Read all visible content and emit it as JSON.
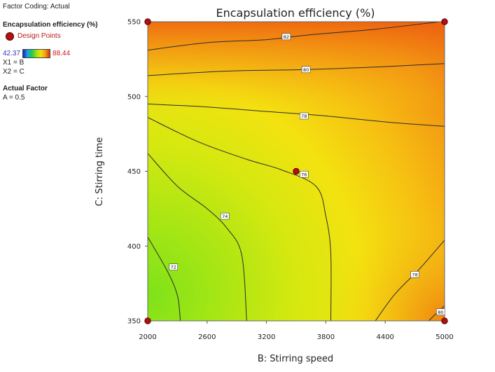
{
  "legend": {
    "factor_coding": "Factor Coding: Actual",
    "response_title": "Encapsulation efficiency (%)",
    "design_points_label": "Design Points",
    "color_min": "42.37",
    "color_max": "88.44",
    "x1": "X1 = B",
    "x2": "X2 = C",
    "actual_factor_title": "Actual Factor",
    "actual_factor_value": "A = 0.5"
  },
  "chart_data": {
    "type": "contour",
    "title": "Encapsulation efficiency (%)",
    "xlabel": "B: Stirring speed",
    "ylabel": "C: Stirring time",
    "xlim": [
      2000,
      5000
    ],
    "ylim": [
      350,
      550
    ],
    "xticks": [
      2000,
      2600,
      3200,
      3800,
      4400,
      5000
    ],
    "yticks": [
      350,
      400,
      450,
      500,
      550
    ],
    "contour_levels": [
      {
        "label": "72",
        "points": [
          [
            2000,
            406
          ],
          [
            2200,
            383
          ],
          [
            2300,
            367
          ],
          [
            2330,
            350
          ]
        ],
        "label_at": [
          2260,
          386
        ]
      },
      {
        "label": "74",
        "points": [
          [
            2000,
            462
          ],
          [
            2300,
            440
          ],
          [
            2600,
            425
          ],
          [
            2800,
            412
          ],
          [
            2950,
            394
          ],
          [
            3000,
            350
          ]
        ],
        "label_at": [
          2780,
          420
        ]
      },
      {
        "label": "76",
        "points": [
          [
            2000,
            486
          ],
          [
            2500,
            470
          ],
          [
            3000,
            458
          ],
          [
            3350,
            451
          ],
          [
            3700,
            440
          ],
          [
            3800,
            420
          ],
          [
            3850,
            395
          ],
          [
            3850,
            350
          ]
        ],
        "label_at": [
          3580,
          448
        ]
      },
      {
        "label": "78",
        "points": [
          [
            2000,
            495
          ],
          [
            2600,
            493
          ],
          [
            3200,
            490
          ],
          [
            3800,
            487
          ],
          [
            4400,
            483
          ],
          [
            5000,
            480
          ]
        ],
        "label_at": [
          3580,
          487
        ]
      },
      {
        "label": "78",
        "points": [
          [
            4300,
            350
          ],
          [
            4500,
            368
          ],
          [
            4750,
            385
          ],
          [
            5000,
            404
          ]
        ],
        "label_at": [
          4700,
          381
        ]
      },
      {
        "label": "80",
        "points": [
          [
            2000,
            514
          ],
          [
            2800,
            517
          ],
          [
            3600,
            518
          ],
          [
            4400,
            520
          ],
          [
            5000,
            522
          ]
        ],
        "label_at": [
          3600,
          518
        ]
      },
      {
        "label": "80",
        "points": [
          [
            4840,
            350
          ],
          [
            4900,
            354
          ],
          [
            5000,
            360
          ]
        ],
        "label_at": [
          4960,
          356
        ]
      },
      {
        "label": "82",
        "points": [
          [
            2000,
            531
          ],
          [
            2600,
            536
          ],
          [
            3200,
            538
          ],
          [
            3600,
            541
          ],
          [
            4300,
            545
          ],
          [
            4950,
            550
          ]
        ],
        "label_at": [
          3400,
          540
        ]
      }
    ],
    "design_points": [
      [
        2000,
        550
      ],
      [
        5000,
        550
      ],
      [
        3500,
        450
      ],
      [
        2000,
        350
      ],
      [
        5000,
        350
      ]
    ],
    "color_range": [
      42.37,
      88.44
    ]
  }
}
